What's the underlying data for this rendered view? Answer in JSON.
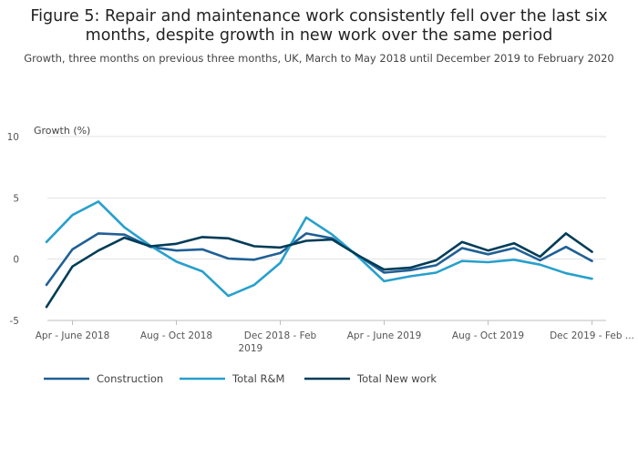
{
  "chart_data": {
    "type": "line",
    "title": "Figure 5: Repair and maintenance work consistently fell over the last six months, despite growth in new work over the same period",
    "subtitle": "Growth, three months on previous three months, UK, March to May 2018 until December 2019 to February 2020",
    "ylabel": "Growth (%)",
    "ylim": [
      -5,
      10
    ],
    "yticks": [
      -5,
      0,
      5,
      10
    ],
    "grid": true,
    "legend_position": "bottom-left",
    "x_tick_labels": [
      {
        "index": 1,
        "lines": [
          "Apr - June 2018"
        ]
      },
      {
        "index": 5,
        "lines": [
          "Aug - Oct 2018"
        ]
      },
      {
        "index": 9,
        "lines": [
          "Dec 2018 - Feb",
          "2019"
        ]
      },
      {
        "index": 13,
        "lines": [
          "Apr - June 2019"
        ]
      },
      {
        "index": 17,
        "lines": [
          "Aug - Oct 2019"
        ]
      },
      {
        "index": 21,
        "lines": [
          "Dec 2019 - Feb ..."
        ]
      }
    ],
    "series": [
      {
        "name": "Construction",
        "color": "#206095",
        "values": [
          -2.1,
          0.8,
          2.1,
          2.0,
          1.0,
          0.7,
          0.8,
          0.05,
          -0.05,
          0.5,
          2.1,
          1.7,
          0.3,
          -1.1,
          -0.9,
          -0.5,
          0.9,
          0.4,
          0.9,
          -0.1,
          1.0,
          -0.15
        ]
      },
      {
        "name": "Total R&M",
        "color": "#27a0cc",
        "values": [
          1.4,
          3.6,
          4.7,
          2.6,
          1.1,
          -0.2,
          -1.0,
          -3.0,
          -2.1,
          -0.3,
          3.4,
          2.0,
          0.2,
          -1.8,
          -1.4,
          -1.1,
          -0.15,
          -0.25,
          -0.05,
          -0.45,
          -1.15,
          -1.6
        ]
      },
      {
        "name": "Total New work",
        "color": "#003c57",
        "values": [
          -3.9,
          -0.6,
          0.7,
          1.75,
          1.05,
          1.25,
          1.8,
          1.7,
          1.05,
          0.95,
          1.5,
          1.6,
          0.3,
          -0.85,
          -0.7,
          -0.1,
          1.4,
          0.7,
          1.3,
          0.2,
          2.1,
          0.6
        ]
      }
    ]
  }
}
